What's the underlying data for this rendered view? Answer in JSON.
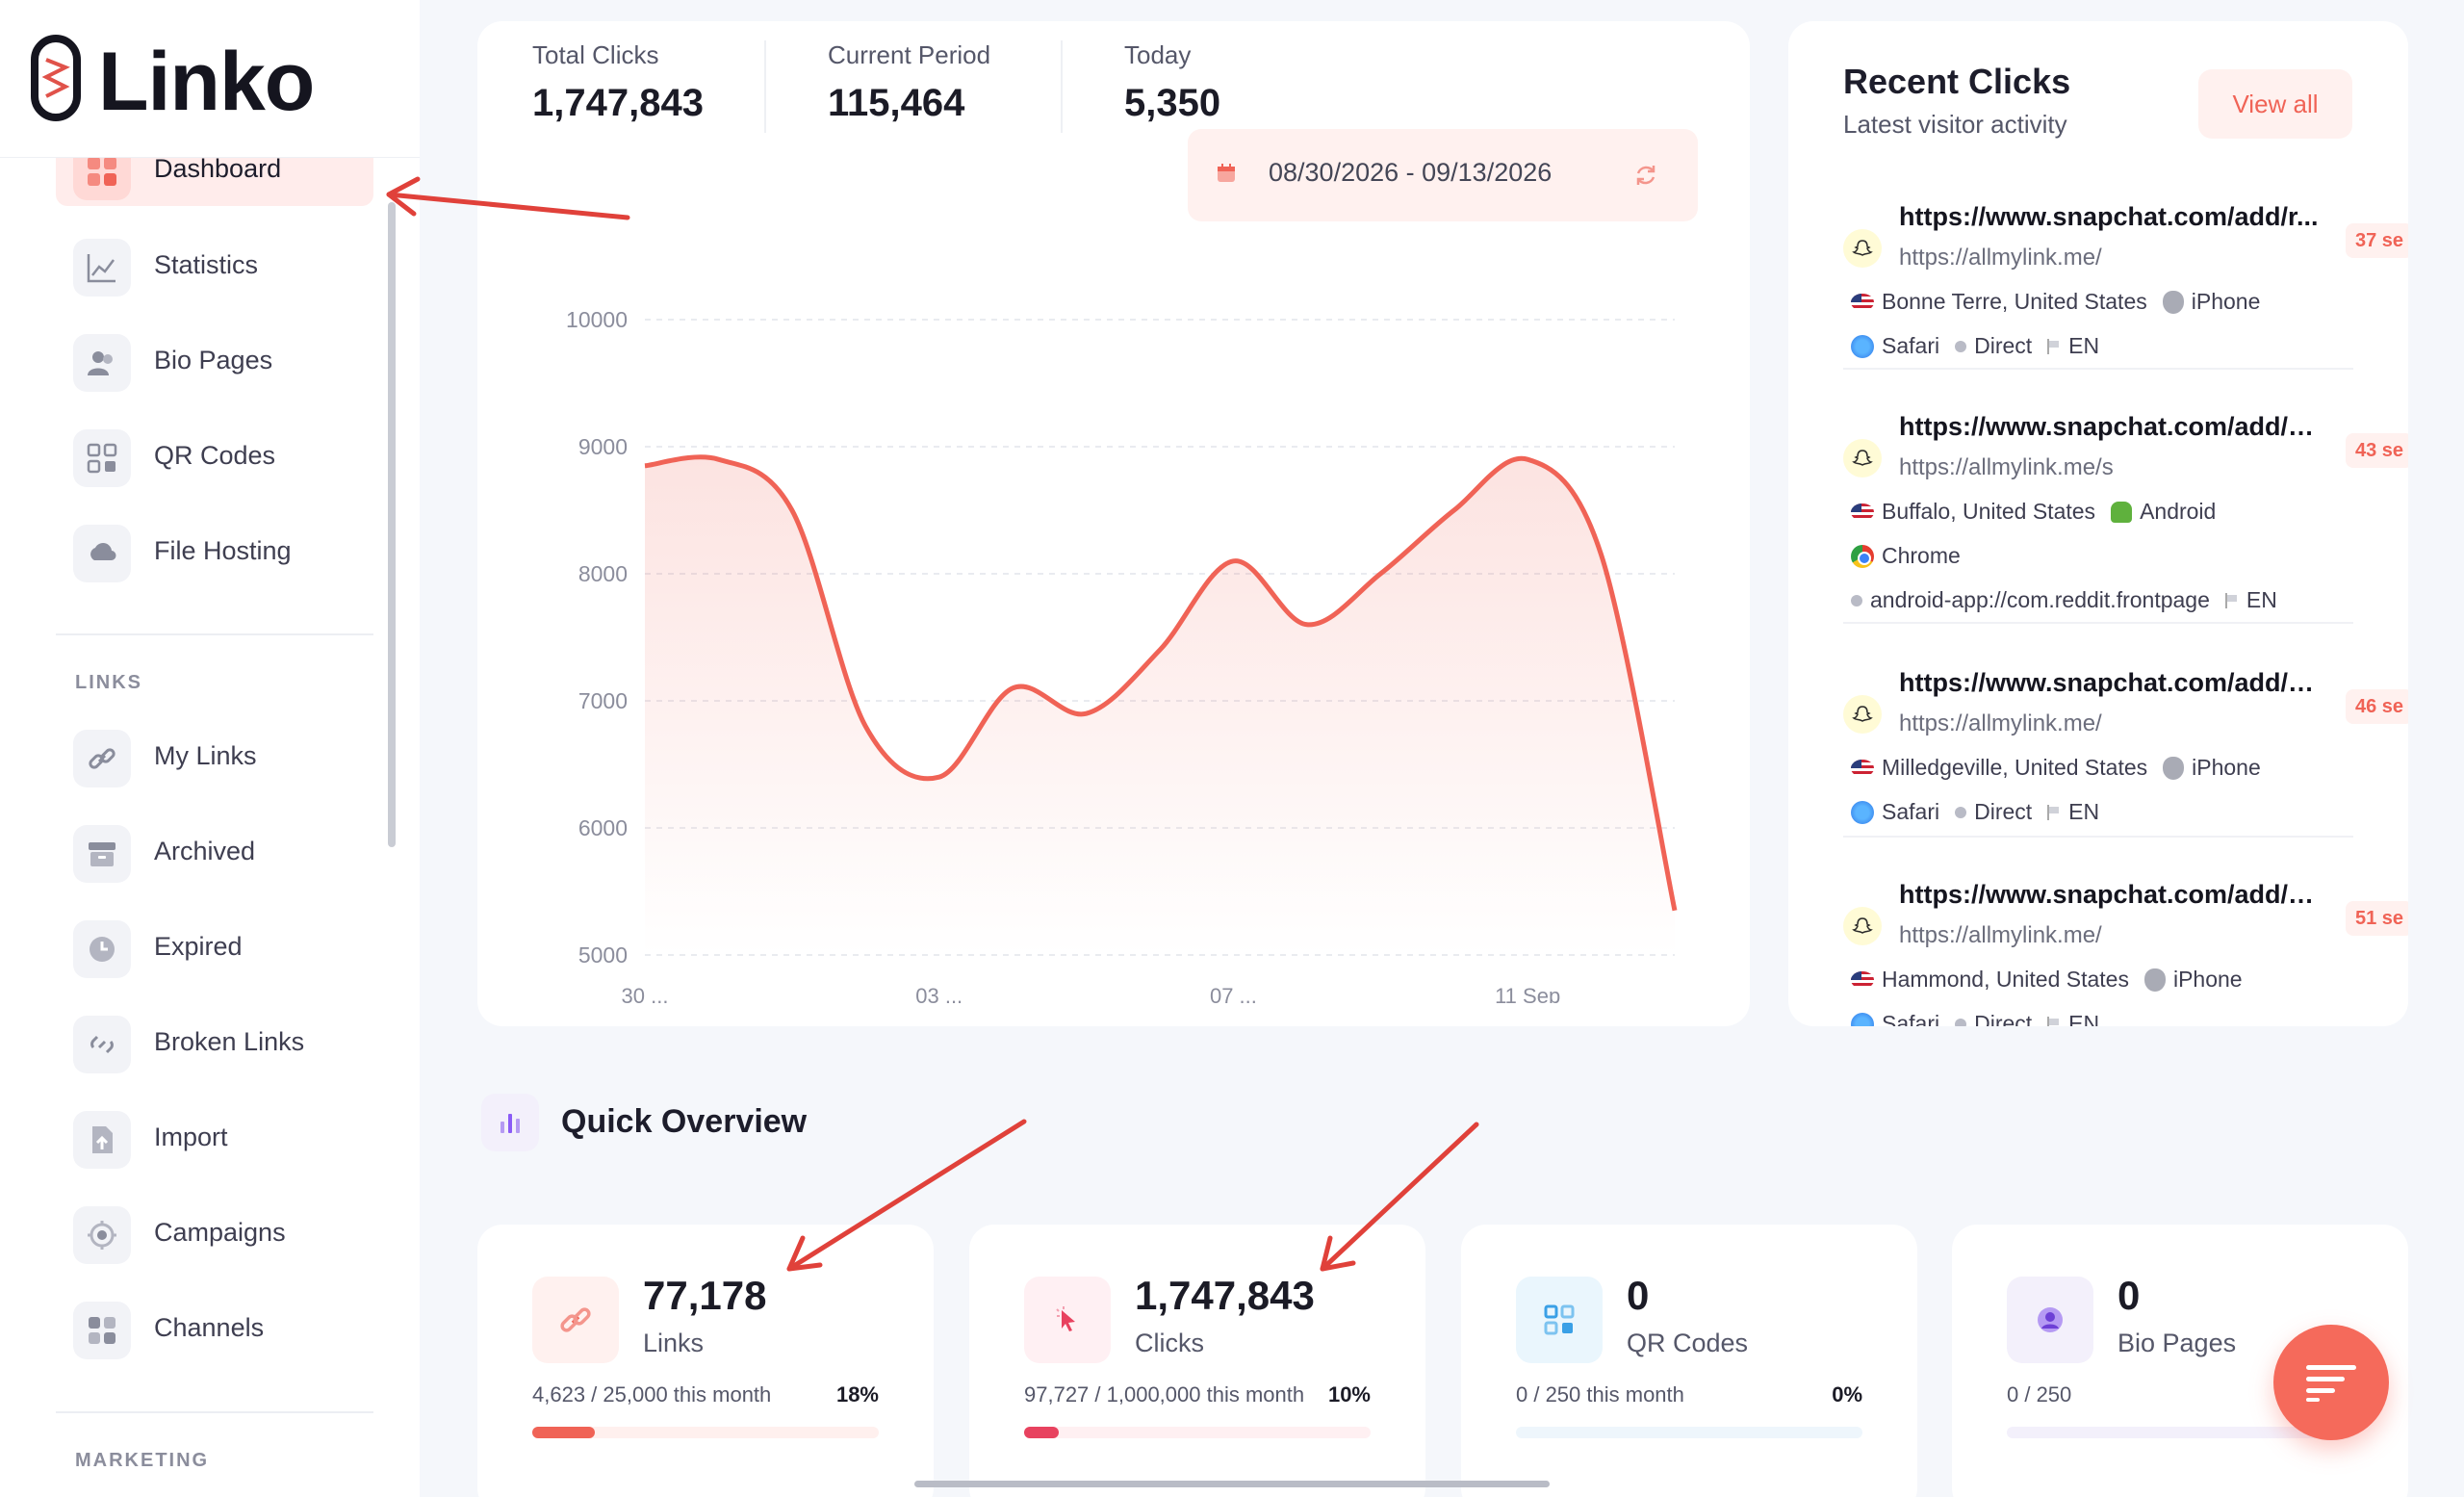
{
  "brand": {
    "name": "Linko"
  },
  "sidebar": {
    "items": [
      {
        "label": "Dashboard",
        "icon": "dashboard-icon",
        "active": true
      },
      {
        "label": "Statistics",
        "icon": "chart-line-icon"
      },
      {
        "label": "Bio Pages",
        "icon": "users-icon"
      },
      {
        "label": "QR Codes",
        "icon": "qr-code-icon"
      },
      {
        "label": "File Hosting",
        "icon": "cloud-icon"
      }
    ],
    "links_section": "LINKS",
    "links_items": [
      {
        "label": "My Links",
        "icon": "link-icon"
      },
      {
        "label": "Archived",
        "icon": "archive-icon"
      },
      {
        "label": "Expired",
        "icon": "clock-icon"
      },
      {
        "label": "Broken Links",
        "icon": "broken-link-icon"
      },
      {
        "label": "Import",
        "icon": "import-icon"
      },
      {
        "label": "Campaigns",
        "icon": "target-icon"
      },
      {
        "label": "Channels",
        "icon": "grid-icon"
      }
    ],
    "marketing_section": "MARKETING"
  },
  "stats": {
    "total_clicks_label": "Total Clicks",
    "total_clicks": "1,747,843",
    "current_period_label": "Current Period",
    "current_period": "115,464",
    "today_label": "Today",
    "today": "5,350"
  },
  "date_range": "08/30/2026 - 09/13/2026",
  "chart_data": {
    "type": "area",
    "x": [
      "30 ...",
      "",
      "",
      "",
      "03 ...",
      "",
      "",
      "",
      "07 ...",
      "",
      "",
      "",
      "11 Sep",
      "",
      ""
    ],
    "values": [
      8850,
      8900,
      8500,
      6800,
      6400,
      7100,
      6900,
      7400,
      8100,
      7600,
      8000,
      8500,
      8900,
      8150,
      5350
    ],
    "y_ticks": [
      "10000",
      "9000",
      "8000",
      "7000",
      "6000",
      "5000"
    ],
    "ylim": [
      5000,
      10000
    ],
    "grid": true,
    "color": "#f06356"
  },
  "recent": {
    "title": "Recent Clicks",
    "subtitle": "Latest visitor activity",
    "view_all": "View all",
    "items": [
      {
        "url": "https://www.snapchat.com/add/r...",
        "short": "https://allmylink.me/",
        "ago": "37 se",
        "location": "Bonne Terre, United States",
        "os": "iPhone",
        "browser": "Safari",
        "referrer": "Direct",
        "lang": "EN"
      },
      {
        "url": "https://www.snapchat.com/add/h...",
        "short": "https://allmylink.me/s",
        "ago": "43 se",
        "location": "Buffalo, United States",
        "os": "Android",
        "browser": "Chrome",
        "referrer": "android-app://com.reddit.frontpage",
        "lang": "EN"
      },
      {
        "url": "https://www.snapchat.com/add/c...",
        "short": "https://allmylink.me/",
        "ago": "46 se",
        "location": "Milledgeville, United States",
        "os": "iPhone",
        "browser": "Safari",
        "referrer": "Direct",
        "lang": "EN"
      },
      {
        "url": "https://www.snapchat.com/add/a...",
        "short": "https://allmylink.me/",
        "ago": "51 se",
        "location": "Hammond, United States",
        "os": "iPhone",
        "browser": "Safari",
        "referrer": "Direct",
        "lang": "EN"
      }
    ]
  },
  "overview": {
    "title": "Quick Overview",
    "cards": [
      {
        "value": "77,178",
        "label": "Links",
        "usage": "4,623 / 25,000 this month",
        "pct": "18%",
        "fill": 0.18,
        "color": "#f06356",
        "track": "#fff0ee",
        "icon_bg": "#fff1ef",
        "icon": "link-icon"
      },
      {
        "value": "1,747,843",
        "label": "Clicks",
        "usage": "97,727 / 1,000,000 this month",
        "pct": "10%",
        "fill": 0.1,
        "color": "#e8425f",
        "track": "#fff0f2",
        "icon_bg": "#fff0f3",
        "icon": "cursor-icon"
      },
      {
        "value": "0",
        "label": "QR Codes",
        "usage": "0 / 250 this month",
        "pct": "0%",
        "fill": 0,
        "color": "#3aa0e6",
        "track": "#eef6fc",
        "icon_bg": "#eaf6fd",
        "icon": "qr-code-icon"
      },
      {
        "value": "0",
        "label": "Bio Pages",
        "usage": "0 / 250",
        "pct": "",
        "fill": 0,
        "color": "#8b5cf6",
        "track": "#f3f0fb",
        "icon_bg": "#f3f0fb",
        "icon": "user-circle-icon"
      }
    ]
  }
}
